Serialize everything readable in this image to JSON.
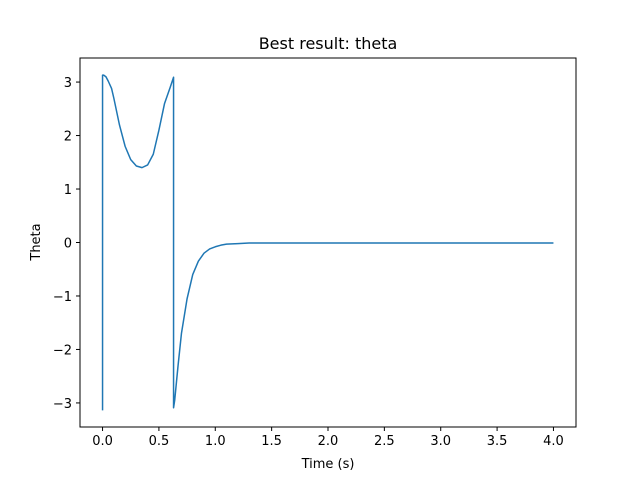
{
  "chart_data": {
    "type": "line",
    "title": "Best result: theta",
    "xlabel": "Time (s)",
    "ylabel": "Theta",
    "xlim": [
      -0.2,
      4.2
    ],
    "ylim": [
      -3.45,
      3.45
    ],
    "xticks": [
      0.0,
      0.5,
      1.0,
      1.5,
      2.0,
      2.5,
      3.0,
      3.5,
      4.0
    ],
    "xtick_labels": [
      "0.0",
      "0.5",
      "1.0",
      "1.5",
      "2.0",
      "2.5",
      "3.0",
      "3.5",
      "4.0"
    ],
    "yticks": [
      -3,
      -2,
      -1,
      0,
      1,
      2,
      3
    ],
    "ytick_labels": [
      "−3",
      "−2",
      "−1",
      "0",
      "1",
      "2",
      "3"
    ],
    "grid": false,
    "series": [
      {
        "color": "#1f77b4",
        "x": [
          0.0,
          0.0,
          0.01,
          0.03,
          0.05,
          0.08,
          0.1,
          0.15,
          0.2,
          0.25,
          0.3,
          0.35,
          0.4,
          0.45,
          0.5,
          0.55,
          0.6,
          0.63,
          0.63,
          0.64,
          0.67,
          0.7,
          0.75,
          0.8,
          0.85,
          0.9,
          0.95,
          1.0,
          1.05,
          1.1,
          1.2,
          1.3,
          1.4,
          1.5,
          1.6,
          1.7,
          1.8,
          1.9,
          2.0,
          2.1,
          2.2,
          2.3,
          2.4,
          2.5,
          2.6,
          2.7,
          2.8,
          2.9,
          3.0,
          3.1,
          3.2,
          3.3,
          3.4,
          3.5,
          3.6,
          3.7,
          3.8,
          3.9,
          4.0
        ],
        "y": [
          -3.14,
          3.13,
          3.13,
          3.1,
          3.02,
          2.88,
          2.7,
          2.2,
          1.8,
          1.55,
          1.43,
          1.4,
          1.45,
          1.65,
          2.1,
          2.6,
          2.9,
          3.09,
          -3.09,
          -2.95,
          -2.3,
          -1.7,
          -1.05,
          -0.6,
          -0.35,
          -0.2,
          -0.12,
          -0.08,
          -0.05,
          -0.03,
          -0.02,
          -0.01,
          -0.01,
          -0.01,
          -0.01,
          -0.01,
          -0.01,
          -0.01,
          -0.01,
          -0.01,
          -0.01,
          -0.01,
          -0.01,
          -0.01,
          -0.01,
          -0.01,
          -0.01,
          -0.01,
          -0.01,
          -0.01,
          -0.01,
          -0.01,
          -0.01,
          -0.01,
          -0.01,
          -0.01,
          -0.01,
          -0.01,
          -0.01
        ]
      }
    ]
  }
}
